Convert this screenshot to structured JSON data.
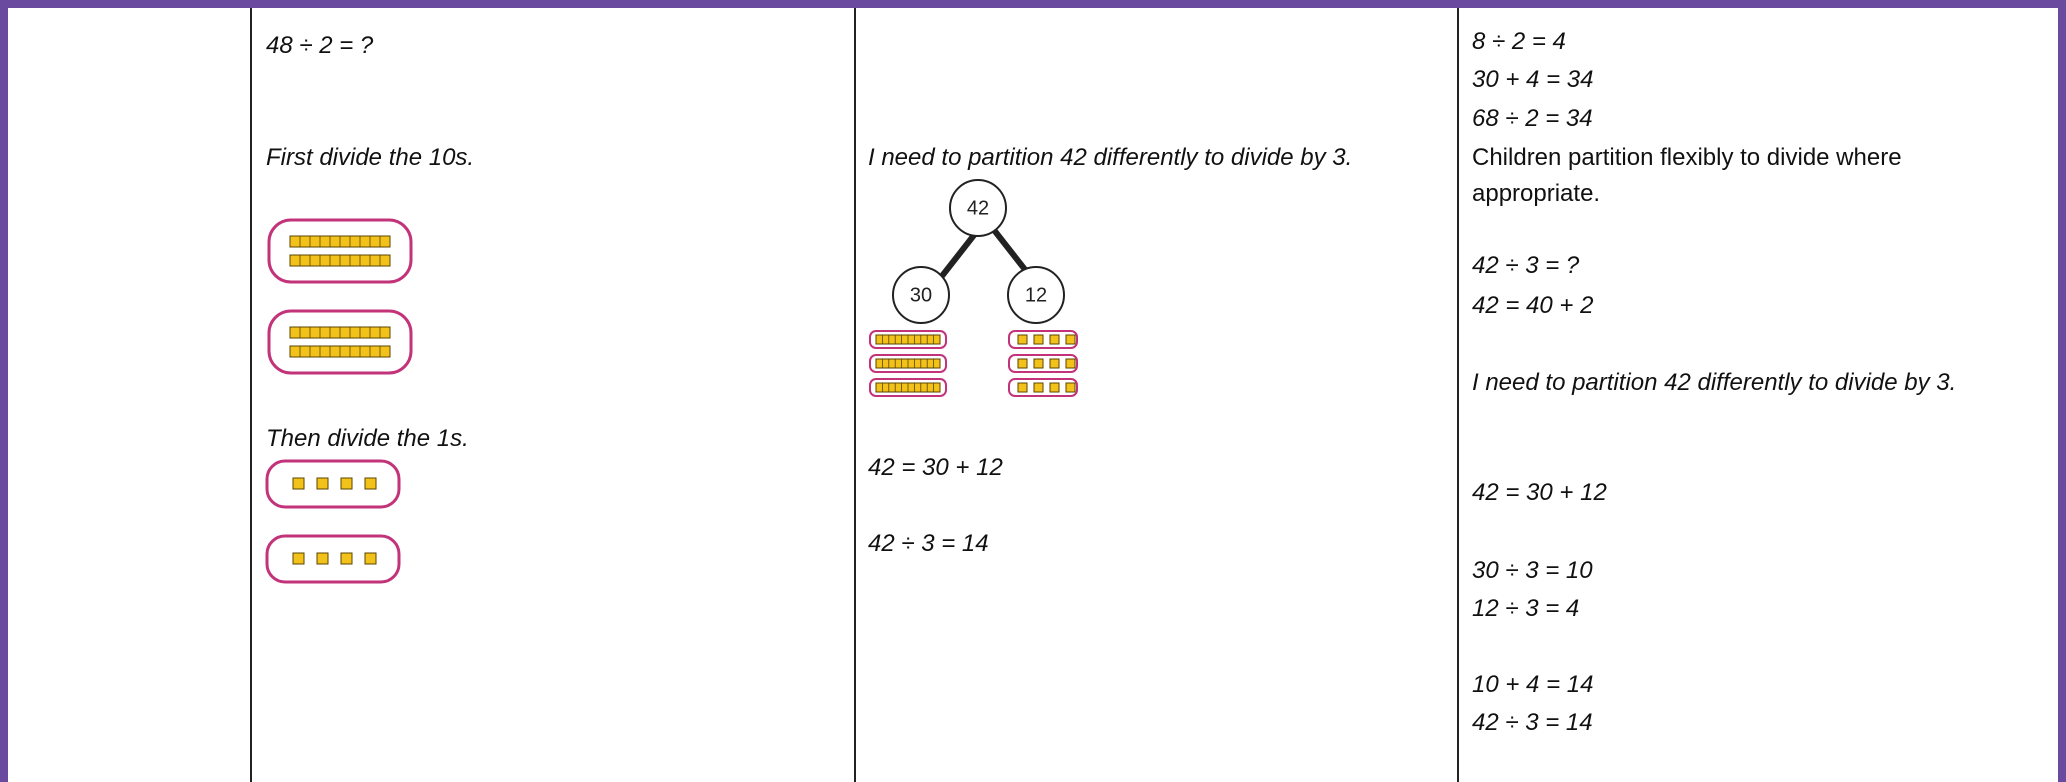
{
  "column2": {
    "question": "48 ÷ 2 = ?",
    "step1": "First divide the 10s.",
    "step2": "Then divide the 1s."
  },
  "column3": {
    "note": "I need to partition 42 differently to divide by 3.",
    "diagram": {
      "whole": "42",
      "parts": [
        "30",
        "12"
      ]
    },
    "equations": [
      "42 = 30 + 12",
      "42 ÷ 3 = 14"
    ]
  },
  "column4": {
    "lines": [
      "8 ÷ 2 = 4",
      "30 + 4 = 34",
      "68 ÷ 2 = 34"
    ],
    "note": "Children partition flexibly to divide where appropriate.",
    "example": [
      "42 ÷ 3 = ?",
      "42 = 40 + 2",
      "I need to partition 42 differently to divide  by 3.",
      "42 = 30 + 12",
      "30 ÷ 3 = 10",
      "12 ÷ 3 = 4",
      "10 + 4 = 14",
      "42 ÷ 3 = 14"
    ]
  }
}
